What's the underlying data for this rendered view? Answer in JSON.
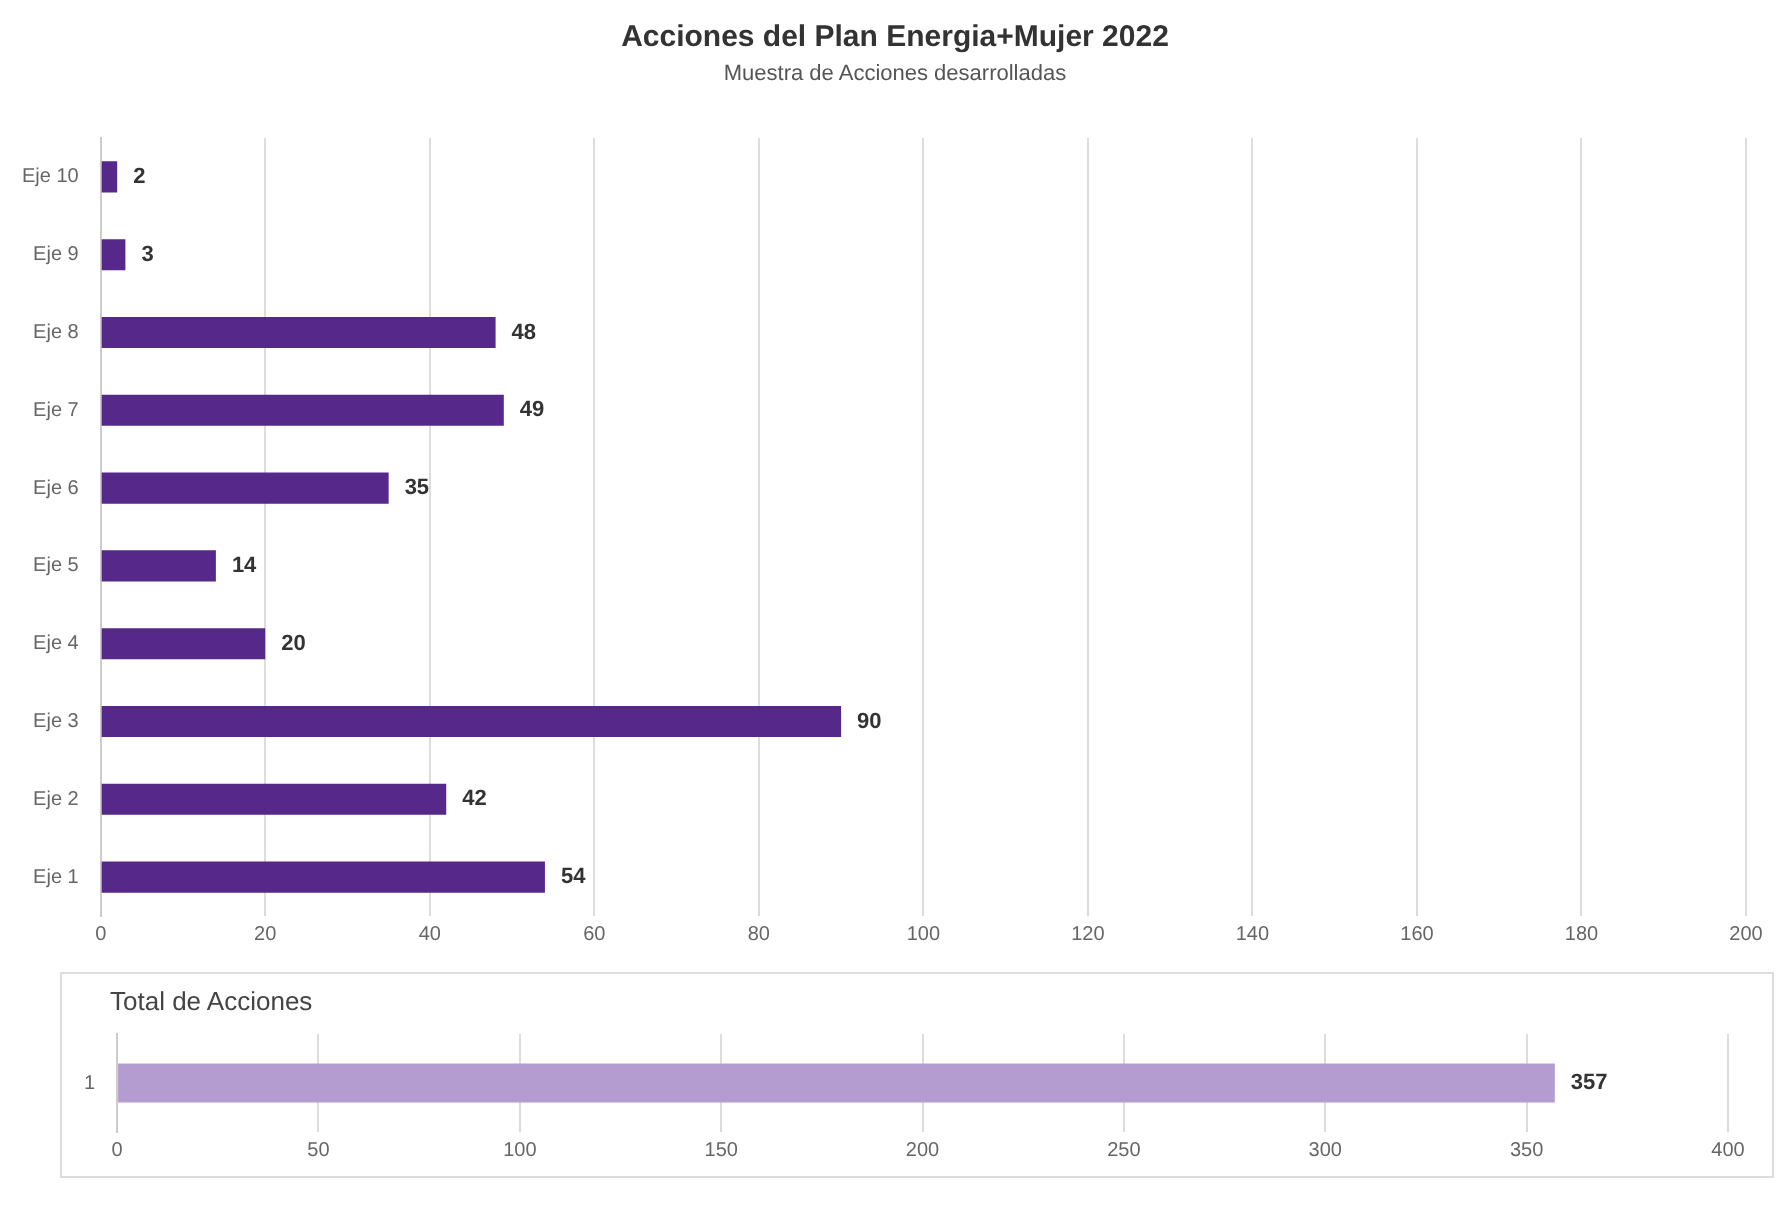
{
  "chart_data": [
    {
      "type": "bar",
      "title": "Acciones del Plan Energia+Mujer 2022",
      "subtitle": "Muestra de Acciones desarrolladas",
      "orientation": "horizontal",
      "categories": [
        "Eje 10",
        "Eje 9",
        "Eje 8",
        "Eje 7",
        "Eje 6",
        "Eje 5",
        "Eje 4",
        "Eje 3",
        "Eje 2",
        "Eje 1"
      ],
      "values": [
        2,
        3,
        48,
        49,
        35,
        14,
        20,
        90,
        42,
        54
      ],
      "color": "#55288a",
      "xlim": [
        0,
        200
      ],
      "xticks": [
        0,
        20,
        40,
        60,
        80,
        100,
        120,
        140,
        160,
        180,
        200
      ],
      "grid": "x",
      "data_labels": true
    },
    {
      "type": "bar",
      "title": "Total de Acciones",
      "orientation": "horizontal",
      "categories": [
        "1"
      ],
      "values": [
        357
      ],
      "color": "#b49bd0",
      "xlim": [
        0,
        400
      ],
      "xticks": [
        0,
        50,
        100,
        150,
        200,
        250,
        300,
        350,
        400
      ],
      "grid": "x",
      "data_labels": true
    }
  ]
}
